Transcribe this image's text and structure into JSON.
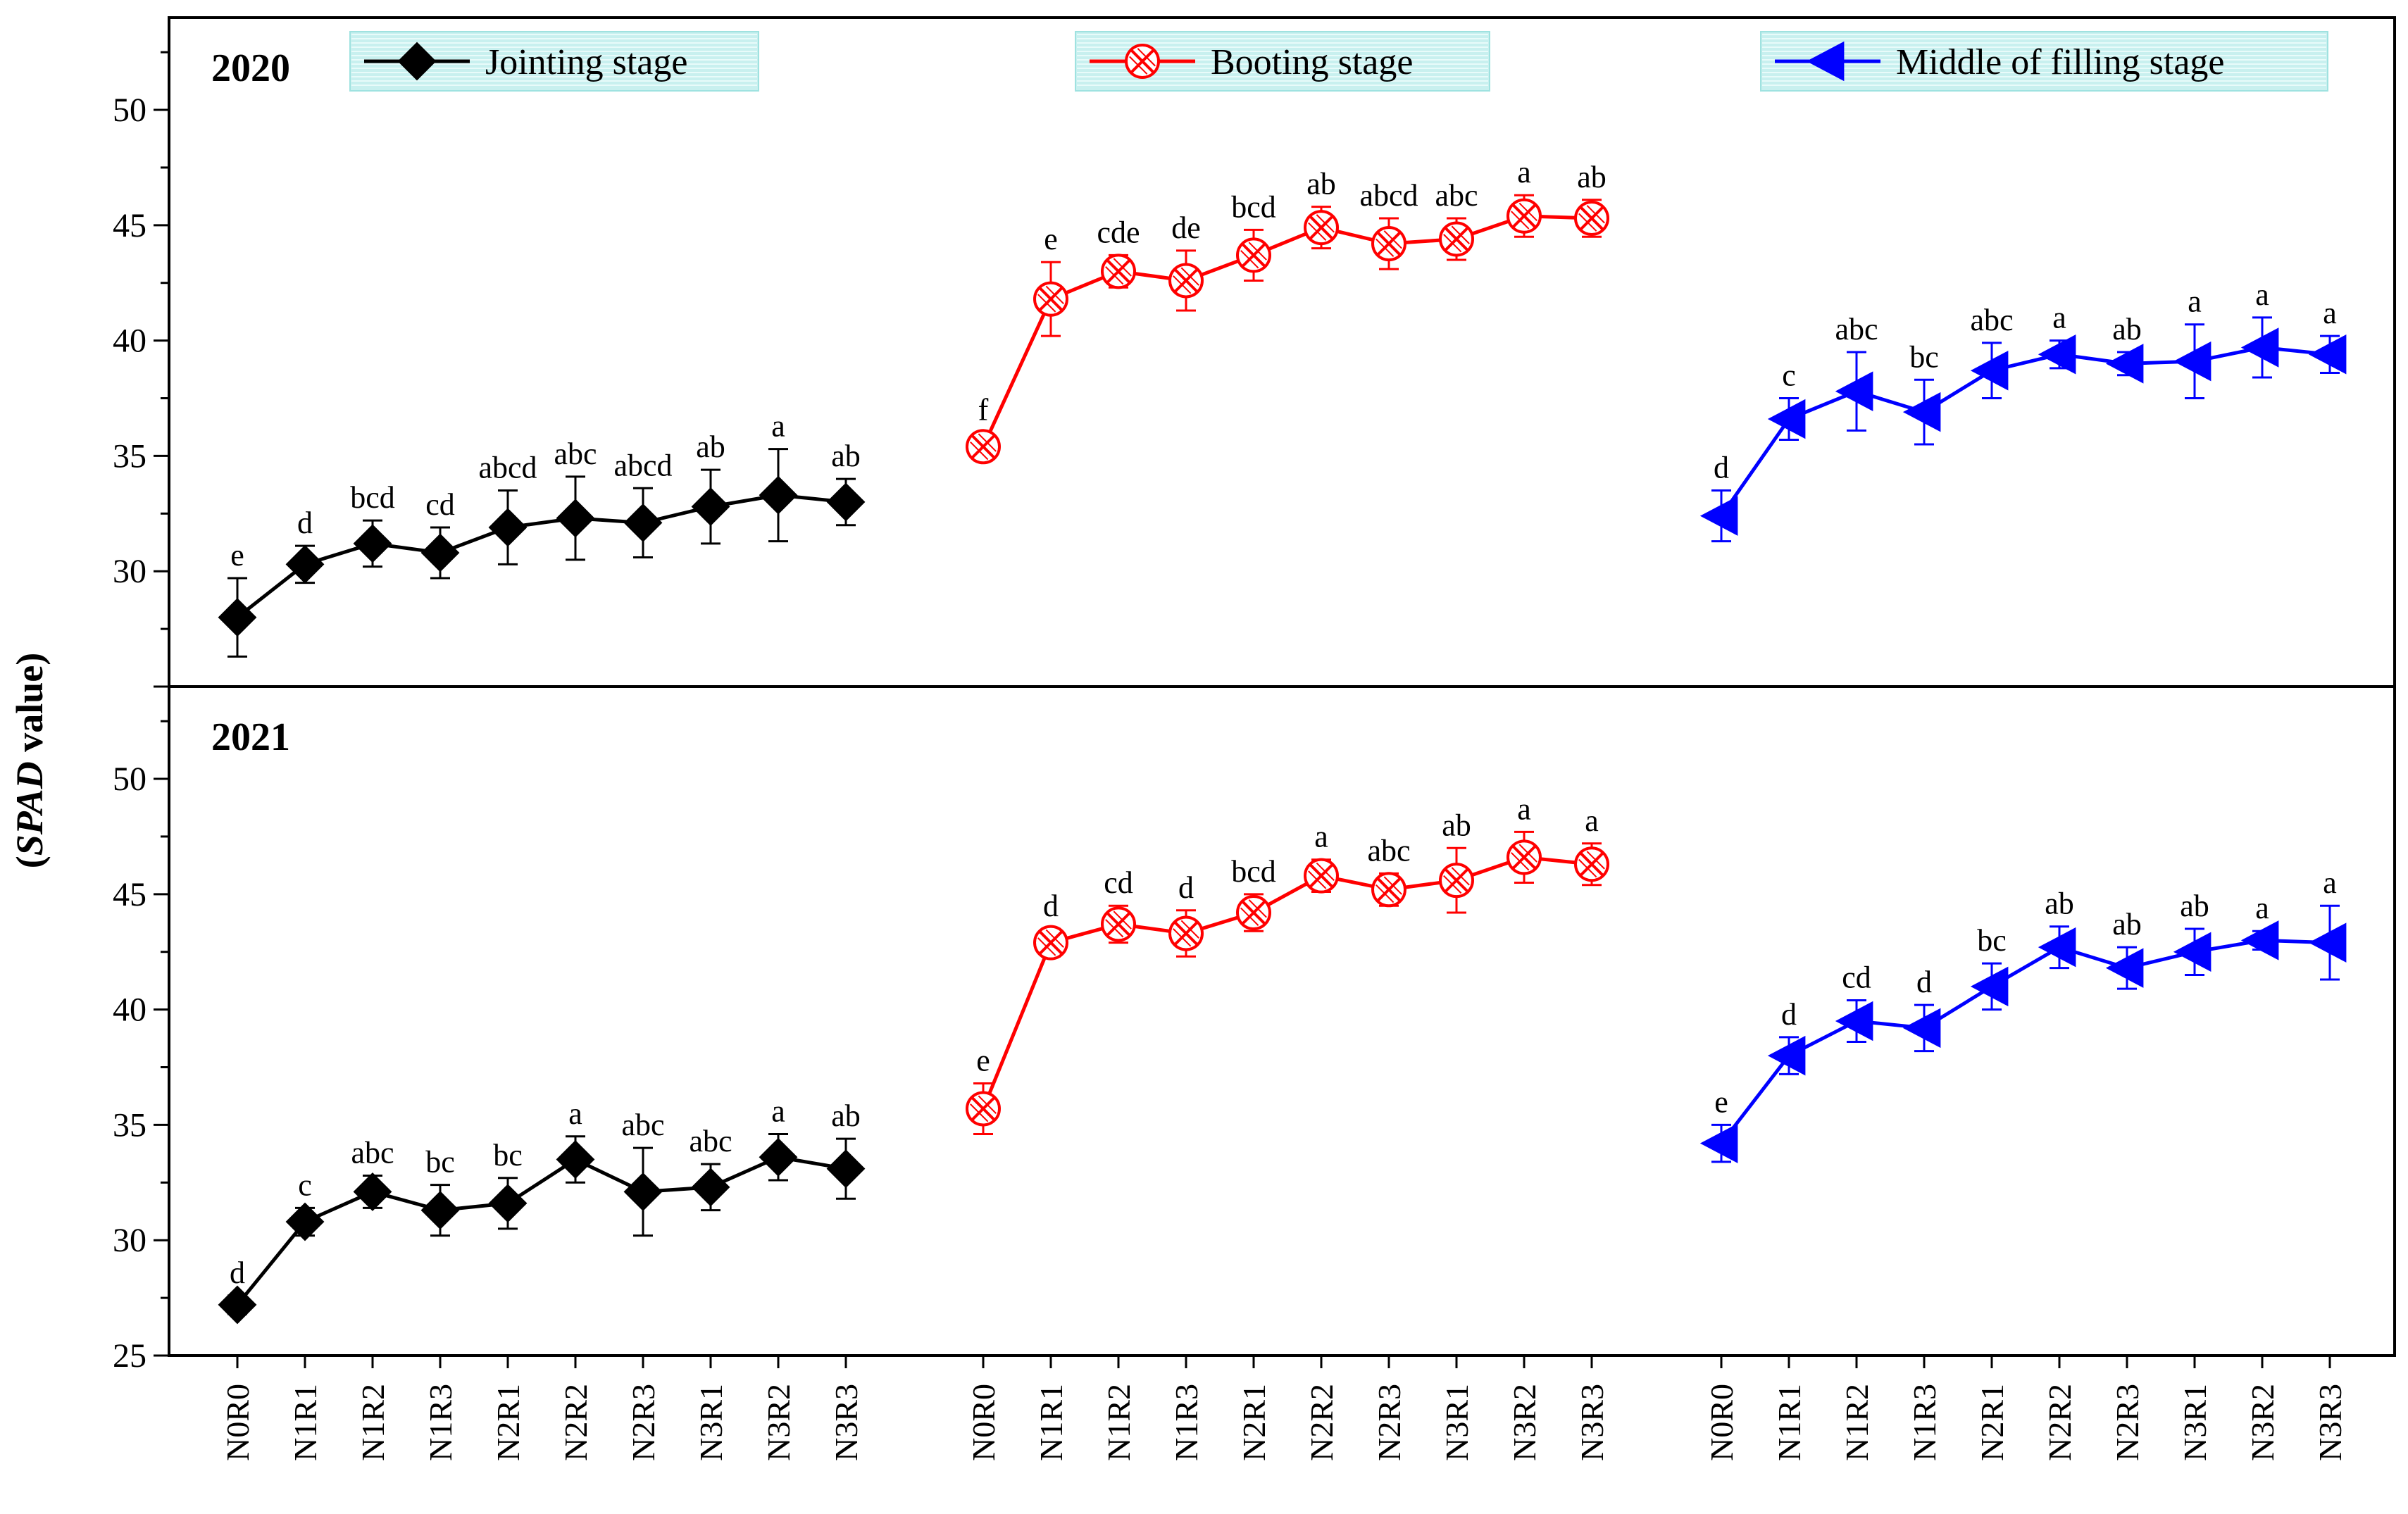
{
  "chart_data": {
    "type": "line",
    "ylabel_prefix": "(",
    "ylabel_italic": "SPAD",
    "ylabel_suffix": " value)",
    "ylim": [
      25,
      54
    ],
    "yticks": [
      "25",
      "30",
      "35",
      "40",
      "45",
      "50"
    ],
    "categories": [
      "N0R0",
      "N1R1",
      "N1R2",
      "N1R3",
      "N2R1",
      "N2R2",
      "N2R3",
      "N3R1",
      "N3R2",
      "N3R3"
    ],
    "legend": [
      {
        "label": "Jointing stage",
        "color": "#000000",
        "marker": "diamond"
      },
      {
        "label": "Booting stage",
        "color": "#ff0000",
        "marker": "crossed-circle"
      },
      {
        "label": "Middle of filling stage",
        "color": "#0000ff",
        "marker": "left-triangle"
      }
    ],
    "panels": [
      {
        "year": "2020",
        "series": [
          {
            "name": "Jointing stage",
            "values": [
              28.0,
              30.3,
              31.2,
              30.8,
              31.9,
              32.3,
              32.1,
              32.8,
              33.3,
              33.0
            ],
            "errors": [
              1.7,
              0.8,
              1.0,
              1.1,
              1.6,
              1.8,
              1.5,
              1.6,
              2.0,
              1.0
            ],
            "labels": [
              "e",
              "d",
              "bcd",
              "cd",
              "abcd",
              "abc",
              "abcd",
              "ab",
              "a",
              "ab"
            ]
          },
          {
            "name": "Booting stage",
            "values": [
              35.4,
              41.8,
              43.0,
              42.6,
              43.7,
              44.9,
              44.2,
              44.4,
              45.4,
              45.3
            ],
            "errors": [
              0.6,
              1.6,
              0.7,
              1.3,
              1.1,
              0.9,
              1.1,
              0.9,
              0.9,
              0.8
            ],
            "labels": [
              "f",
              "e",
              "cde",
              "de",
              "bcd",
              "ab",
              "abcd",
              "abc",
              "a",
              "ab"
            ]
          },
          {
            "name": "Middle of filling stage",
            "values": [
              32.4,
              36.6,
              37.8,
              36.9,
              38.7,
              39.4,
              39.0,
              39.1,
              39.7,
              39.4
            ],
            "errors": [
              1.1,
              0.9,
              1.7,
              1.4,
              1.2,
              0.6,
              0.5,
              1.6,
              1.3,
              0.8
            ],
            "labels": [
              "d",
              "c",
              "abc",
              "bc",
              "abc",
              "a",
              "ab",
              "a",
              "a",
              "a"
            ]
          }
        ]
      },
      {
        "year": "2021",
        "series": [
          {
            "name": "Jointing stage",
            "values": [
              27.2,
              30.8,
              32.1,
              31.3,
              31.6,
              33.5,
              32.1,
              32.3,
              33.6,
              33.1
            ],
            "errors": [
              0.4,
              0.6,
              0.7,
              1.1,
              1.1,
              1.0,
              1.9,
              1.0,
              1.0,
              1.3
            ],
            "labels": [
              "d",
              "c",
              "abc",
              "bc",
              "bc",
              "a",
              "abc",
              "abc",
              "a",
              "ab"
            ]
          },
          {
            "name": "Booting stage",
            "values": [
              35.7,
              42.9,
              43.7,
              43.3,
              44.2,
              45.8,
              45.2,
              45.6,
              46.6,
              46.3
            ],
            "errors": [
              1.1,
              0.6,
              0.8,
              1.0,
              0.8,
              0.7,
              0.7,
              1.4,
              1.1,
              0.9
            ],
            "labels": [
              "e",
              "d",
              "cd",
              "d",
              "bcd",
              "a",
              "abc",
              "ab",
              "a",
              "a"
            ]
          },
          {
            "name": "Middle of filling stage",
            "values": [
              34.2,
              38.0,
              39.5,
              39.2,
              41.0,
              42.7,
              41.8,
              42.5,
              43.0,
              42.9
            ],
            "errors": [
              0.8,
              0.8,
              0.9,
              1.0,
              1.0,
              0.9,
              0.9,
              1.0,
              0.4,
              1.6
            ],
            "labels": [
              "e",
              "d",
              "cd",
              "d",
              "bc",
              "ab",
              "ab",
              "ab",
              "a",
              "a"
            ]
          }
        ]
      }
    ]
  }
}
